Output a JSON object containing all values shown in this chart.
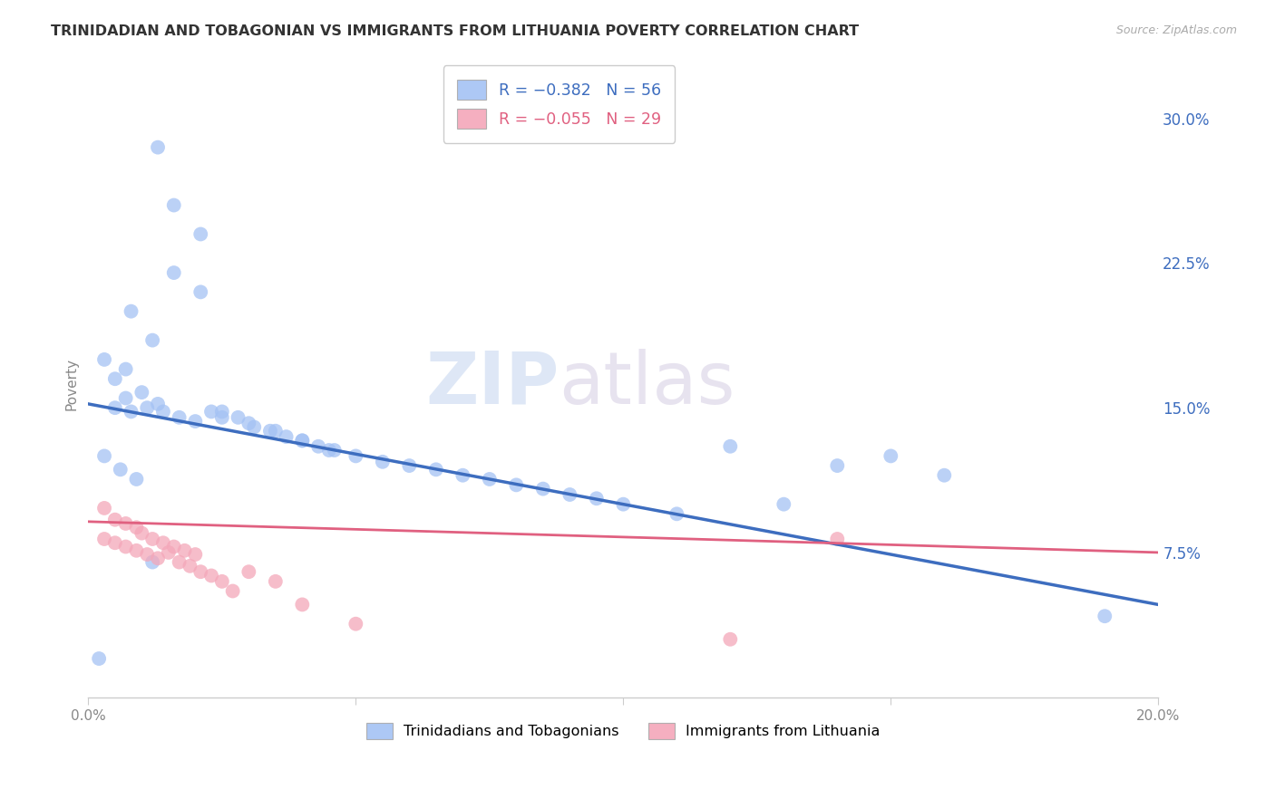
{
  "title": "TRINIDADIAN AND TOBAGONIAN VS IMMIGRANTS FROM LITHUANIA POVERTY CORRELATION CHART",
  "source": "Source: ZipAtlas.com",
  "ylabel": "Poverty",
  "y_ticks": [
    0.075,
    0.15,
    0.225,
    0.3
  ],
  "y_tick_labels": [
    "7.5%",
    "15.0%",
    "22.5%",
    "30.0%"
  ],
  "x_range": [
    0.0,
    0.2
  ],
  "y_range": [
    0.0,
    0.325
  ],
  "legend_blue_r": "-0.382",
  "legend_blue_n": "56",
  "legend_pink_r": "-0.055",
  "legend_pink_n": "29",
  "legend_label_blue": "Trinidadians and Tobagonians",
  "legend_label_pink": "Immigrants from Lithuania",
  "blue_scatter_x": [
    0.013,
    0.016,
    0.021,
    0.016,
    0.021,
    0.008,
    0.012,
    0.003,
    0.005,
    0.007,
    0.007,
    0.01,
    0.013,
    0.005,
    0.008,
    0.011,
    0.014,
    0.017,
    0.02,
    0.023,
    0.025,
    0.028,
    0.031,
    0.034,
    0.037,
    0.04,
    0.043,
    0.046,
    0.025,
    0.03,
    0.035,
    0.04,
    0.045,
    0.05,
    0.055,
    0.06,
    0.065,
    0.07,
    0.075,
    0.08,
    0.085,
    0.09,
    0.095,
    0.1,
    0.11,
    0.12,
    0.13,
    0.14,
    0.15,
    0.16,
    0.19,
    0.003,
    0.006,
    0.009,
    0.012,
    0.002
  ],
  "blue_scatter_y": [
    0.285,
    0.255,
    0.24,
    0.22,
    0.21,
    0.2,
    0.185,
    0.175,
    0.165,
    0.17,
    0.155,
    0.158,
    0.152,
    0.15,
    0.148,
    0.15,
    0.148,
    0.145,
    0.143,
    0.148,
    0.145,
    0.145,
    0.14,
    0.138,
    0.135,
    0.133,
    0.13,
    0.128,
    0.148,
    0.142,
    0.138,
    0.133,
    0.128,
    0.125,
    0.122,
    0.12,
    0.118,
    0.115,
    0.113,
    0.11,
    0.108,
    0.105,
    0.103,
    0.1,
    0.095,
    0.13,
    0.1,
    0.12,
    0.125,
    0.115,
    0.042,
    0.125,
    0.118,
    0.113,
    0.07,
    0.02
  ],
  "pink_scatter_x": [
    0.003,
    0.005,
    0.007,
    0.009,
    0.003,
    0.005,
    0.007,
    0.009,
    0.011,
    0.013,
    0.015,
    0.017,
    0.019,
    0.021,
    0.023,
    0.025,
    0.027,
    0.01,
    0.012,
    0.014,
    0.016,
    0.018,
    0.02,
    0.03,
    0.035,
    0.04,
    0.05,
    0.14,
    0.12
  ],
  "pink_scatter_y": [
    0.098,
    0.092,
    0.09,
    0.088,
    0.082,
    0.08,
    0.078,
    0.076,
    0.074,
    0.072,
    0.075,
    0.07,
    0.068,
    0.065,
    0.063,
    0.06,
    0.055,
    0.085,
    0.082,
    0.08,
    0.078,
    0.076,
    0.074,
    0.065,
    0.06,
    0.048,
    0.038,
    0.082,
    0.03
  ],
  "blue_color": "#a4c2f4",
  "pink_color": "#f4a7b9",
  "blue_line_color": "#3d6dbf",
  "pink_line_color": "#e06080",
  "blue_line_start_y": 0.152,
  "blue_line_end_y": 0.048,
  "pink_line_start_y": 0.091,
  "pink_line_end_y": 0.075,
  "watermark_zip": "ZIP",
  "watermark_atlas": "atlas",
  "background_color": "#ffffff",
  "grid_color": "#cccccc"
}
